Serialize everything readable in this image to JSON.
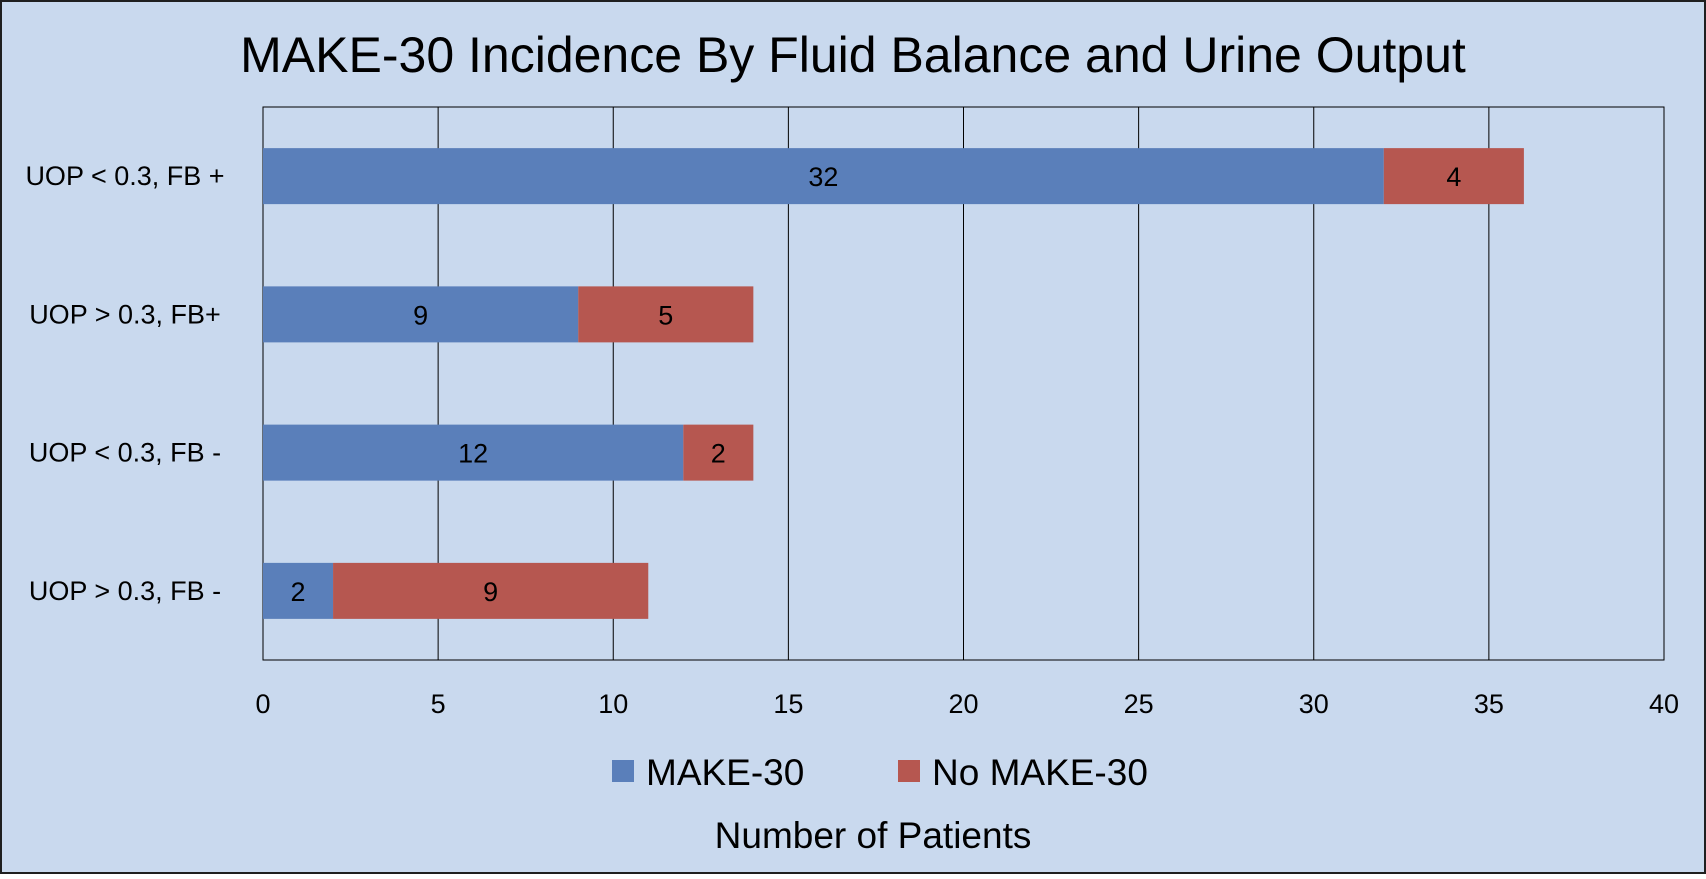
{
  "colors": {
    "background": "#c9d9ee",
    "frame": "#1f1f1f",
    "gridline": "#000000",
    "text": "#000000"
  },
  "chart_data": {
    "type": "bar",
    "orientation": "horizontal",
    "stacked": true,
    "title": "MAKE-30 Incidence By Fluid Balance and Urine Output",
    "xlabel": "Number of Patients",
    "ylabel": "",
    "xlim": [
      0,
      40
    ],
    "xticks": [
      0,
      5,
      10,
      15,
      20,
      25,
      30,
      35,
      40
    ],
    "grid": "vertical",
    "legend_position": "bottom",
    "categories": [
      "UOP < 0.3, FB +",
      "UOP > 0.3, FB+",
      "UOP < 0.3, FB -",
      "UOP > 0.3, FB -"
    ],
    "series": [
      {
        "name": "MAKE-30",
        "color": "#5a7fba",
        "values": [
          32,
          9,
          12,
          2
        ]
      },
      {
        "name": "No MAKE-30",
        "color": "#b65750",
        "values": [
          4,
          5,
          2,
          9
        ]
      }
    ],
    "data_labels": true
  }
}
